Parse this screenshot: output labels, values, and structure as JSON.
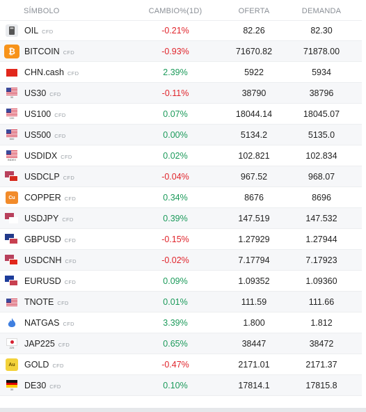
{
  "headers": {
    "symbol": "SÍMBOLO",
    "change": "CAMBIO%(1D)",
    "bid": "OFERTA",
    "ask": "DEMANDA"
  },
  "colors": {
    "negative": "#e0242b",
    "positive": "#1b9a5a"
  },
  "rows": [
    {
      "symbol": "OIL",
      "tag": "CFD",
      "change": "-0.21%",
      "dir": "neg",
      "bid": "82.26",
      "ask": "82.30",
      "icon": "oil-icon"
    },
    {
      "symbol": "BITCOIN",
      "tag": "CFD",
      "change": "-0.93%",
      "dir": "neg",
      "bid": "71670.82",
      "ask": "71878.00",
      "icon": "bitcoin-icon"
    },
    {
      "symbol": "CHN.cash",
      "tag": "CFD",
      "change": "2.39%",
      "dir": "pos",
      "bid": "5922",
      "ask": "5934",
      "icon": "china-flag-icon"
    },
    {
      "symbol": "US30",
      "tag": "CFD",
      "change": "-0.11%",
      "dir": "neg",
      "bid": "38790",
      "ask": "38796",
      "icon": "us-flag-icon",
      "sub": "30"
    },
    {
      "symbol": "US100",
      "tag": "CFD",
      "change": "0.07%",
      "dir": "pos",
      "bid": "18044.14",
      "ask": "18045.07",
      "icon": "us-flag-icon",
      "sub": "100"
    },
    {
      "symbol": "US500",
      "tag": "CFD",
      "change": "0.00%",
      "dir": "pos",
      "bid": "5134.2",
      "ask": "5135.0",
      "icon": "us-flag-icon",
      "sub": "500"
    },
    {
      "symbol": "USDIDX",
      "tag": "CFD",
      "change": "0.02%",
      "dir": "pos",
      "bid": "102.821",
      "ask": "102.834",
      "icon": "us-flag-icon",
      "sub": "INDEX"
    },
    {
      "symbol": "USDCLP",
      "tag": "CFD",
      "change": "-0.04%",
      "dir": "neg",
      "bid": "967.52",
      "ask": "968.07",
      "icon": "us-chile-flags-icon"
    },
    {
      "symbol": "COPPER",
      "tag": "CFD",
      "change": "0.34%",
      "dir": "pos",
      "bid": "8676",
      "ask": "8696",
      "icon": "copper-icon",
      "label": "Cu"
    },
    {
      "symbol": "USDJPY",
      "tag": "CFD",
      "change": "0.39%",
      "dir": "pos",
      "bid": "147.519",
      "ask": "147.532",
      "icon": "us-japan-flags-icon"
    },
    {
      "symbol": "GBPUSD",
      "tag": "CFD",
      "change": "-0.15%",
      "dir": "neg",
      "bid": "1.27929",
      "ask": "1.27944",
      "icon": "uk-us-flags-icon"
    },
    {
      "symbol": "USDCNH",
      "tag": "CFD",
      "change": "-0.02%",
      "dir": "neg",
      "bid": "7.17794",
      "ask": "7.17923",
      "icon": "us-china-flags-icon"
    },
    {
      "symbol": "EURUSD",
      "tag": "CFD",
      "change": "0.09%",
      "dir": "pos",
      "bid": "1.09352",
      "ask": "1.09360",
      "icon": "eu-us-flags-icon"
    },
    {
      "symbol": "TNOTE",
      "tag": "CFD",
      "change": "0.01%",
      "dir": "pos",
      "bid": "111.59",
      "ask": "111.66",
      "icon": "us-flag-icon",
      "sub": ""
    },
    {
      "symbol": "NATGAS",
      "tag": "CFD",
      "change": "3.39%",
      "dir": "pos",
      "bid": "1.800",
      "ask": "1.812",
      "icon": "flame-icon"
    },
    {
      "symbol": "JAP225",
      "tag": "CFD",
      "change": "0.65%",
      "dir": "pos",
      "bid": "38447",
      "ask": "38472",
      "icon": "japan-flag-icon",
      "sub": "225"
    },
    {
      "symbol": "GOLD",
      "tag": "CFD",
      "change": "-0.47%",
      "dir": "neg",
      "bid": "2171.01",
      "ask": "2171.37",
      "icon": "gold-icon",
      "label": "Au"
    },
    {
      "symbol": "DE30",
      "tag": "CFD",
      "change": "0.10%",
      "dir": "pos",
      "bid": "17814.1",
      "ask": "17815.8",
      "icon": "germany-flag-icon",
      "sub": "30"
    }
  ]
}
